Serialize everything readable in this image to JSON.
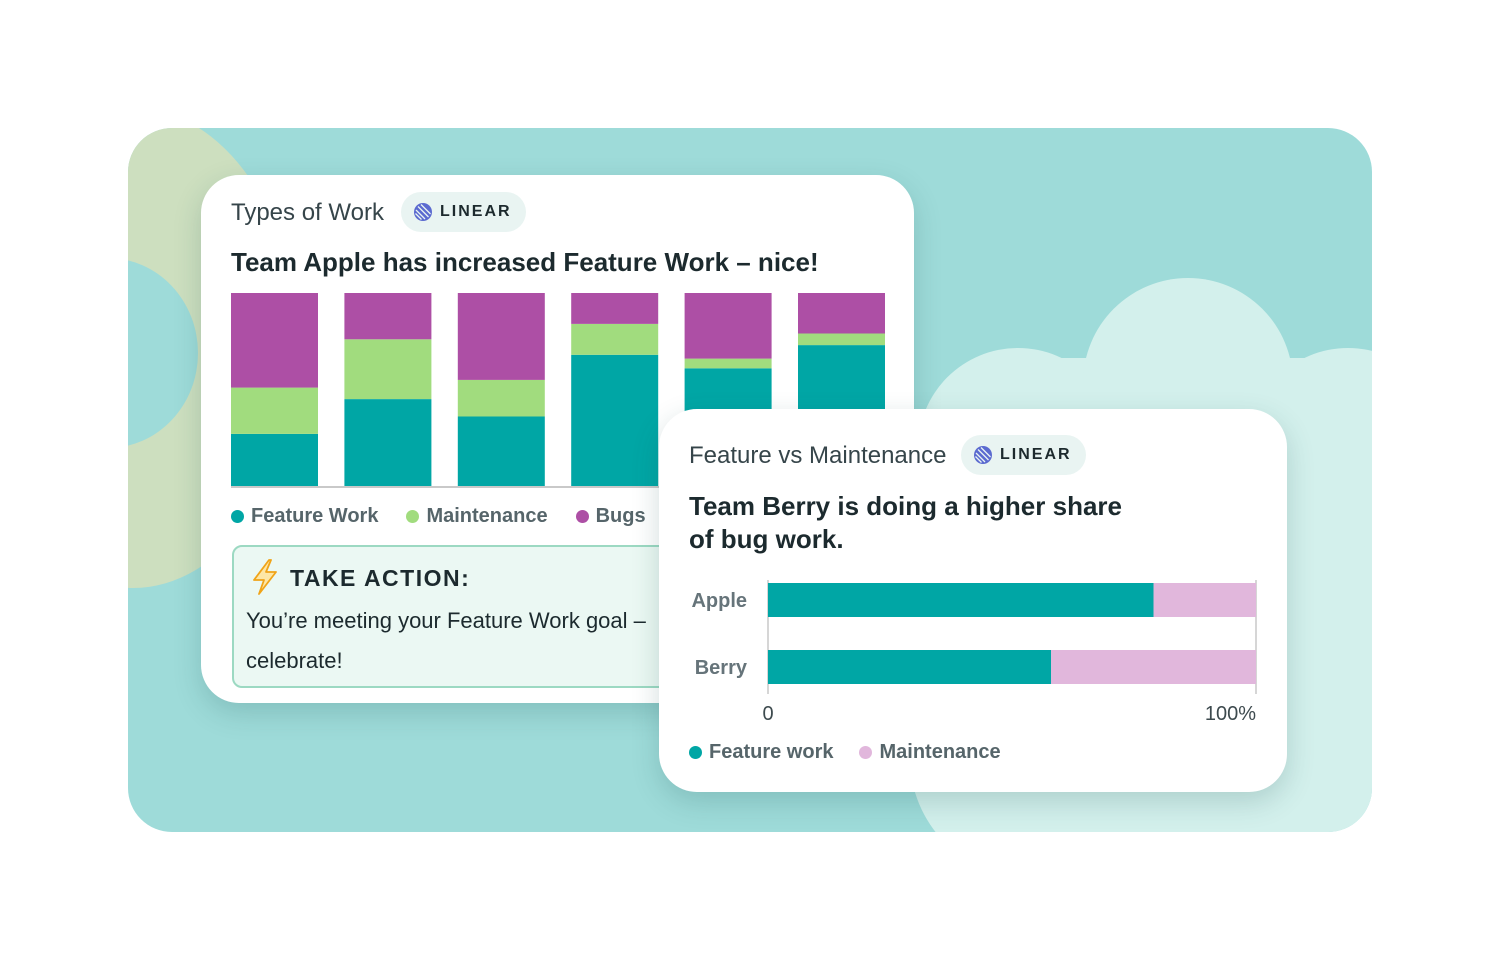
{
  "card_types_of_work": {
    "label": "Types of Work",
    "badge": "LINEAR",
    "headline": "Team Apple has increased Feature Work – nice!",
    "take_action": {
      "title": "TAKE ACTION:",
      "text": "You’re meeting your Feature Work goal – celebrate!"
    }
  },
  "card_feature_vs_maintenance": {
    "label": "Feature vs Maintenance",
    "badge": "LINEAR",
    "headline_line1": "Team Berry is doing a higher share",
    "headline_line2": "of bug work."
  },
  "colors": {
    "feature": "#00a6a5",
    "maintenance_light_green": "#a1dc7e",
    "bugs": "#ad4fa5",
    "maintenance_pink": "#e1b7dc",
    "scene_background": "#9edbd9"
  },
  "chart_data": [
    {
      "type": "bar",
      "stacked": true,
      "categories": [
        "",
        "",
        "",
        "",
        "",
        ""
      ],
      "series": [
        {
          "name": "Feature Work",
          "color": "#00a6a5",
          "values": [
            27,
            45,
            36,
            68,
            61,
            73
          ]
        },
        {
          "name": "Maintenance",
          "color": "#a1dc7e",
          "values": [
            24,
            31,
            19,
            16,
            5,
            6
          ]
        },
        {
          "name": "Bugs",
          "color": "#ad4fa5",
          "values": [
            49,
            24,
            45,
            16,
            34,
            21
          ]
        }
      ],
      "ylim": [
        0,
        100
      ],
      "grid": false,
      "legend": "bottom"
    },
    {
      "type": "bar",
      "orientation": "horizontal",
      "stacked": true,
      "categories": [
        "Apple",
        "Berry"
      ],
      "series": [
        {
          "name": "Feature work",
          "color": "#00a6a5",
          "values": [
            79,
            58
          ]
        },
        {
          "name": "Maintenance",
          "color": "#e1b7dc",
          "values": [
            21,
            42
          ]
        }
      ],
      "xlim": [
        0,
        100
      ],
      "tick_labels": [
        "0",
        "100%"
      ],
      "grid": false,
      "legend": "bottom"
    }
  ]
}
